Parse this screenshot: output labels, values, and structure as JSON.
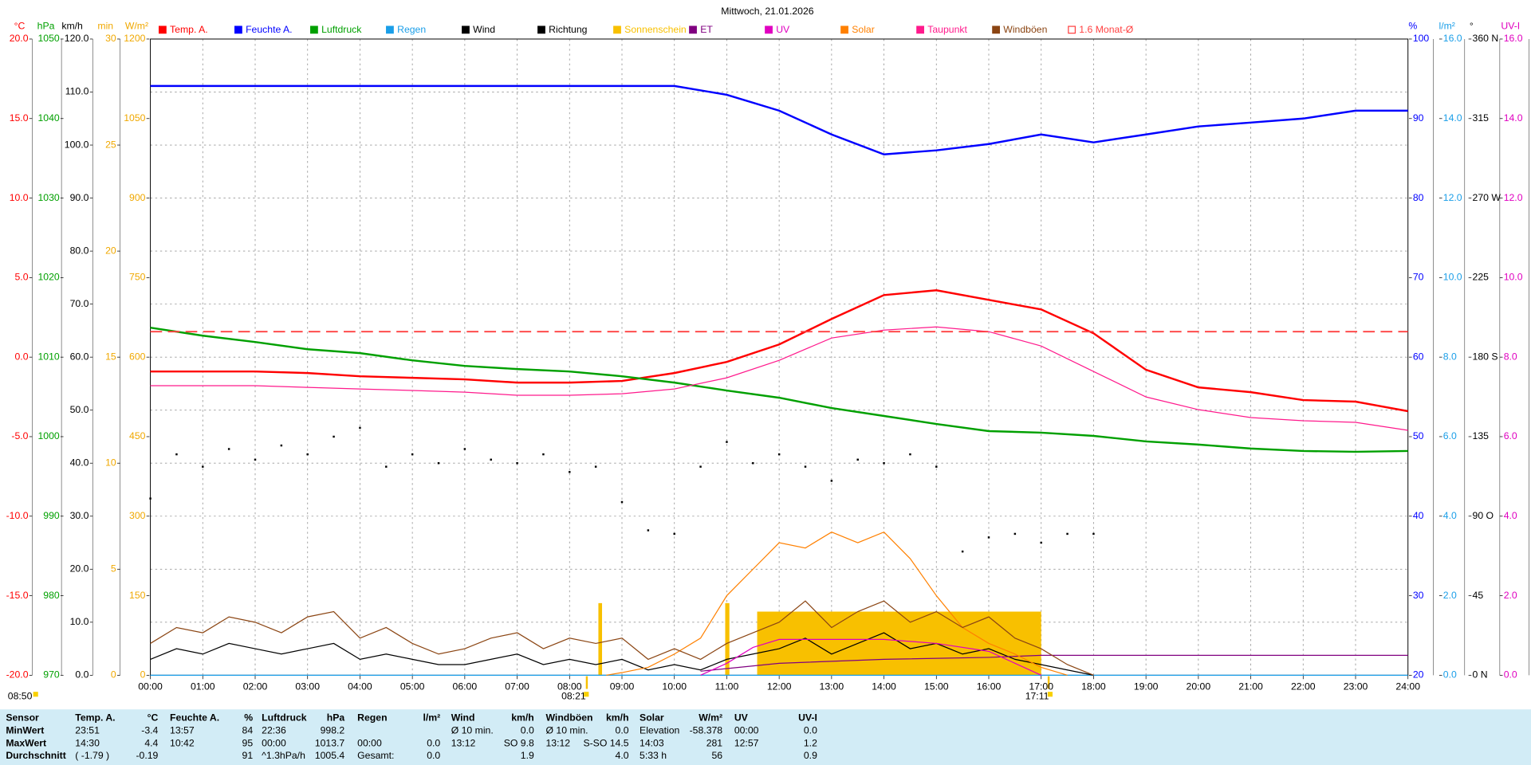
{
  "chart_data": {
    "type": "line",
    "title": "Mittwoch, 21.01.2026",
    "xlim": [
      0,
      24
    ],
    "xticks": [
      {
        "value": 0,
        "label": "00:00"
      },
      {
        "value": 1,
        "label": "01:00"
      },
      {
        "value": 2,
        "label": "02:00"
      },
      {
        "value": 3,
        "label": "03:00"
      },
      {
        "value": 4,
        "label": "04:00"
      },
      {
        "value": 5,
        "label": "05:00"
      },
      {
        "value": 6,
        "label": "06:00"
      },
      {
        "value": 7,
        "label": "07:00"
      },
      {
        "value": 8,
        "label": "08:00"
      },
      {
        "value": 9,
        "label": "09:00"
      },
      {
        "value": 10,
        "label": "10:00"
      },
      {
        "value": 11,
        "label": "11:00"
      },
      {
        "value": 12,
        "label": "12:00"
      },
      {
        "value": 13,
        "label": "13:00"
      },
      {
        "value": 14,
        "label": "14:00"
      },
      {
        "value": 15,
        "label": "15:00"
      },
      {
        "value": 16,
        "label": "16:00"
      },
      {
        "value": 17,
        "label": "17:00"
      },
      {
        "value": 18,
        "label": "18:00"
      },
      {
        "value": 19,
        "label": "19:00"
      },
      {
        "value": 20,
        "label": "20:00"
      },
      {
        "value": 21,
        "label": "21:00"
      },
      {
        "value": 22,
        "label": "22:00"
      },
      {
        "value": 23,
        "label": "23:00"
      },
      {
        "value": 24,
        "label": "24:00"
      }
    ],
    "grid": true,
    "axes": [
      {
        "id": "temp",
        "label": "°C",
        "color": "#ff0000",
        "ylim": [
          -20,
          20
        ],
        "yticks": [
          {
            "value": 20,
            "label": "20.0"
          },
          {
            "value": 15,
            "label": "15.0"
          },
          {
            "value": 10,
            "label": "10.0"
          },
          {
            "value": 5,
            "label": "5.0"
          },
          {
            "value": 0,
            "label": "0.0"
          },
          {
            "value": -5,
            "label": "-5.0"
          },
          {
            "value": -10,
            "label": "-10.0"
          },
          {
            "value": -15,
            "label": "-15.0"
          },
          {
            "value": -20,
            "label": "-20.0"
          }
        ]
      },
      {
        "id": "hpa",
        "label": "hPa",
        "color": "#00a000",
        "ylim": [
          970,
          1050
        ],
        "yticks": [
          1050,
          1040,
          1030,
          1020,
          1010,
          1000,
          990,
          980,
          970
        ]
      },
      {
        "id": "kmh",
        "label": "km/h",
        "color": "#000000",
        "ylim": [
          0,
          120
        ],
        "grid": true,
        "yticks": [
          {
            "value": 120,
            "label": "120.0"
          },
          {
            "value": 110,
            "label": "110.0"
          },
          {
            "value": 100,
            "label": "100.0"
          },
          {
            "value": 90,
            "label": "90.0"
          },
          {
            "value": 80,
            "label": "80.0"
          },
          {
            "value": 70,
            "label": "70.0"
          },
          {
            "value": 60,
            "label": "60.0"
          },
          {
            "value": 50,
            "label": "50.0"
          },
          {
            "value": 40,
            "label": "40.0"
          },
          {
            "value": 30,
            "label": "30.0"
          },
          {
            "value": 20,
            "label": "20.0"
          },
          {
            "value": 10,
            "label": "10.0"
          },
          {
            "value": 0,
            "label": "0.0"
          }
        ]
      },
      {
        "id": "min",
        "label": "min",
        "color": "#f0a800",
        "ylim": [
          0,
          30
        ],
        "yticks": [
          30,
          25,
          20,
          15,
          10,
          5,
          0
        ]
      },
      {
        "id": "wm2",
        "label": "W/m²",
        "color": "#f0a800",
        "ylim": [
          0,
          1200
        ],
        "yticks": [
          1200,
          1050,
          900,
          750,
          600,
          450,
          300,
          150,
          0
        ]
      },
      {
        "id": "pct",
        "label": "%",
        "color": "#0000ff",
        "ylim": [
          20,
          100
        ],
        "yticks": [
          100,
          90,
          80,
          70,
          60,
          50,
          40,
          30,
          20
        ]
      },
      {
        "id": "lm2",
        "label": "l/m²",
        "color": "#1a9ee8",
        "ylim": [
          0,
          16
        ],
        "yticks": [
          {
            "value": 16,
            "label": "16.0"
          },
          {
            "value": 14,
            "label": "14.0"
          },
          {
            "value": 12,
            "label": "12.0"
          },
          {
            "value": 10,
            "label": "10.0"
          },
          {
            "value": 8,
            "label": "8.0"
          },
          {
            "value": 6,
            "label": "6.0"
          },
          {
            "value": 4,
            "label": "4.0"
          },
          {
            "value": 2,
            "label": "2.0"
          },
          {
            "value": 0,
            "label": "0.0"
          }
        ]
      },
      {
        "id": "deg",
        "label": "°",
        "color": "#000000",
        "ylim": [
          0,
          360
        ],
        "yticks": [
          {
            "value": 360,
            "label": "360 N"
          },
          315,
          {
            "value": 270,
            "label": "270 W"
          },
          225,
          {
            "value": 180,
            "label": "180 S"
          },
          135,
          {
            "value": 90,
            "label": "90 O"
          },
          45,
          {
            "value": 0,
            "label": "0 N"
          }
        ]
      },
      {
        "id": "uv",
        "label": "UV-I",
        "color": "#e000c0",
        "ylim": [
          0,
          16
        ],
        "yticks": [
          {
            "value": 16,
            "label": "16.0"
          },
          {
            "value": 14,
            "label": "14.0"
          },
          {
            "value": 12,
            "label": "12.0"
          },
          {
            "value": 10,
            "label": "10.0"
          },
          {
            "value": 8,
            "label": "8.0"
          },
          {
            "value": 6,
            "label": "6.0"
          },
          {
            "value": 4,
            "label": "4.0"
          },
          {
            "value": 2,
            "label": "2.0"
          },
          {
            "value": 0,
            "label": "0.0"
          }
        ]
      }
    ],
    "series": [
      {
        "name": "Temp. A.",
        "color": "#ff0000",
        "axis": "temp",
        "style": "line",
        "x": [
          0,
          1,
          2,
          3,
          4,
          5,
          6,
          7,
          8,
          9,
          10,
          11,
          12,
          13,
          14,
          15,
          16,
          17,
          18,
          19,
          20,
          21,
          22,
          23,
          24
        ],
        "values": [
          -0.9,
          -0.9,
          -0.9,
          -1.0,
          -1.2,
          -1.3,
          -1.4,
          -1.6,
          -1.6,
          -1.5,
          -1.0,
          -0.3,
          0.8,
          2.4,
          3.9,
          4.2,
          3.6,
          3.0,
          1.5,
          -0.8,
          -1.9,
          -2.2,
          -2.7,
          -2.8,
          -3.4
        ]
      },
      {
        "name": "Feuchte A.",
        "color": "#0000ff",
        "axis": "pct",
        "style": "line",
        "x": [
          0,
          1,
          2,
          3,
          4,
          5,
          6,
          7,
          8,
          9,
          10,
          11,
          12,
          13,
          14,
          15,
          16,
          17,
          18,
          19,
          20,
          21,
          22,
          23,
          24
        ],
        "values": [
          94.1,
          94.1,
          94.1,
          94.1,
          94.1,
          94.1,
          94.1,
          94.1,
          94.1,
          94.1,
          94.1,
          93,
          91,
          88,
          85.5,
          86,
          86.8,
          88,
          87,
          88,
          89,
          89.5,
          90,
          91,
          91
        ]
      },
      {
        "name": "Luftdruck",
        "color": "#00a000",
        "axis": "hpa",
        "style": "line",
        "x": [
          0,
          1,
          2,
          3,
          4,
          5,
          6,
          7,
          8,
          9,
          10,
          11,
          12,
          13,
          14,
          15,
          16,
          17,
          18,
          19,
          20,
          21,
          22,
          23,
          24
        ],
        "values": [
          1013.7,
          1012.7,
          1011.9,
          1011,
          1010.5,
          1009.6,
          1008.9,
          1008.5,
          1008.2,
          1007.6,
          1006.8,
          1005.8,
          1004.9,
          1003.6,
          1002.6,
          1001.6,
          1000.7,
          1000.5,
          1000.1,
          999.4,
          999,
          998.5,
          998.2,
          998.1,
          998.2
        ]
      },
      {
        "name": "Regen",
        "color": "#1a9ee8",
        "axis": "lm2",
        "style": "line",
        "x": [
          0,
          24
        ],
        "values": [
          0,
          0
        ]
      },
      {
        "name": "Wind",
        "color": "#000000",
        "axis": "kmh",
        "style": "line",
        "x": [
          0,
          0.5,
          1,
          1.5,
          2,
          2.5,
          3,
          3.5,
          4,
          4.5,
          5,
          5.5,
          6,
          6.5,
          7,
          7.5,
          8,
          8.5,
          9,
          9.5,
          10,
          10.5,
          11,
          11.5,
          12,
          12.5,
          13,
          13.5,
          14,
          14.5,
          15,
          15.5,
          16,
          16.5,
          17,
          17.5,
          18
        ],
        "values": [
          3,
          5,
          4,
          6,
          5,
          4,
          5,
          6,
          3,
          4,
          3,
          2,
          2,
          3,
          4,
          2,
          3,
          2,
          3,
          1,
          2,
          1,
          3,
          4,
          5,
          7,
          4,
          6,
          8,
          5,
          6,
          4,
          5,
          3,
          2,
          1,
          0
        ]
      },
      {
        "name": "Richtung",
        "color": "#000000",
        "axis": "deg",
        "style": "dots",
        "x": [
          0,
          0.5,
          1,
          1.5,
          2,
          2.5,
          3,
          3.5,
          4,
          4.5,
          5,
          5.5,
          6,
          6.5,
          7,
          7.5,
          8,
          8.5,
          9,
          9.5,
          10,
          10.5,
          11,
          11.5,
          12,
          12.5,
          13,
          13.5,
          14,
          14.5,
          15,
          15.5,
          16,
          16.5,
          17,
          17.5,
          18
        ],
        "values": [
          100,
          125,
          118,
          128,
          122,
          130,
          125,
          135,
          140,
          118,
          125,
          120,
          128,
          122,
          120,
          125,
          115,
          118,
          98,
          82,
          80,
          118,
          132,
          120,
          125,
          118,
          110,
          122,
          120,
          125,
          118,
          70,
          78,
          80,
          75,
          80,
          80
        ]
      },
      {
        "name": "Sonnenschein",
        "color": "#f8c000",
        "axis": "min",
        "style": "bars",
        "x": [
          8.55,
          10.97,
          11.58
        ],
        "x_end": [
          8.62,
          11.05,
          17.0
        ],
        "values": [
          3.4,
          3.4,
          3.0
        ]
      },
      {
        "name": "ET",
        "color": "#800080",
        "axis": "lm2",
        "style": "line",
        "x": [
          10.5,
          12,
          14,
          16,
          17,
          24
        ],
        "values": [
          0.1,
          0.3,
          0.4,
          0.45,
          0.5,
          0.5
        ]
      },
      {
        "name": "UV",
        "color": "#e000c0",
        "axis": "uv",
        "style": "line",
        "x": [
          10.5,
          11,
          11.5,
          12,
          13,
          14,
          15,
          16,
          17
        ],
        "values": [
          0,
          0.3,
          0.7,
          0.9,
          0.9,
          0.9,
          0.8,
          0.6,
          0
        ]
      },
      {
        "name": "Solar",
        "color": "#ff8000",
        "axis": "wm2",
        "style": "line",
        "x": [
          8.7,
          9,
          9.5,
          10,
          10.5,
          11,
          11.5,
          12,
          12.5,
          13,
          13.5,
          14,
          14.5,
          15,
          15.5,
          16,
          16.5,
          17,
          17.5
        ],
        "values": [
          0,
          5,
          15,
          40,
          70,
          150,
          200,
          250,
          240,
          270,
          250,
          270,
          220,
          150,
          90,
          60,
          40,
          15,
          0
        ]
      },
      {
        "name": "Taupunkt",
        "color": "#ff1a8c",
        "axis": "temp",
        "style": "line",
        "x": [
          0,
          1,
          2,
          3,
          4,
          5,
          6,
          7,
          8,
          9,
          10,
          11,
          12,
          13,
          14,
          15,
          16,
          17,
          18,
          19,
          20,
          21,
          22,
          23,
          24
        ],
        "values": [
          -1.8,
          -1.8,
          -1.8,
          -1.9,
          -2.0,
          -2.1,
          -2.2,
          -2.4,
          -2.4,
          -2.3,
          -2.0,
          -1.3,
          -0.2,
          1.2,
          1.7,
          1.9,
          1.6,
          0.7,
          -0.9,
          -2.5,
          -3.3,
          -3.8,
          -4.0,
          -4.1,
          -4.6
        ]
      },
      {
        "name": "Windböen",
        "color": "#8b4513",
        "axis": "kmh",
        "style": "line",
        "x": [
          0,
          0.5,
          1,
          1.5,
          2,
          2.5,
          3,
          3.5,
          4,
          4.5,
          5,
          5.5,
          6,
          6.5,
          7,
          7.5,
          8,
          8.5,
          9,
          9.5,
          10,
          10.5,
          11,
          11.5,
          12,
          12.5,
          13,
          13.5,
          14,
          14.5,
          15,
          15.5,
          16,
          16.5,
          17,
          17.5,
          18
        ],
        "values": [
          6,
          9,
          8,
          11,
          10,
          8,
          11,
          12,
          7,
          9,
          6,
          4,
          5,
          7,
          8,
          5,
          7,
          6,
          7,
          3,
          5,
          3,
          6,
          8,
          10,
          14,
          9,
          12,
          14,
          10,
          12,
          9,
          11,
          7,
          5,
          2,
          0
        ]
      },
      {
        "name": "1.6 Monat-Ø",
        "color": "#ff4040",
        "axis": "temp",
        "style": "dashed",
        "x": [
          0,
          24
        ],
        "values": [
          1.6,
          1.6
        ]
      }
    ],
    "annotations": [
      "08:50",
      "08:21",
      "17:11"
    ],
    "table": {
      "header": [
        "Sensor",
        "Temp. A.",
        "°C",
        "Feuchte A.",
        "%",
        "Luftdruck",
        "hPa",
        "Regen",
        "l/m²",
        "Wind",
        "km/h",
        "Windböen",
        "km/h",
        "Solar",
        "W/m²",
        "UV",
        "UV-I"
      ],
      "rows": [
        [
          "MinWert",
          "23:51",
          "-3.4",
          "13:57",
          "84",
          "22:36",
          "998.2",
          null,
          null,
          "Ø 10 min.",
          "0.0",
          "Ø 10 min.",
          "0.0",
          "Elevation",
          "-58.378",
          "00:00",
          "0.0"
        ],
        [
          "MaxWert",
          "14:30",
          "4.4",
          "10:42",
          "95",
          "00:00",
          "1013.7",
          "00:00",
          "0.0",
          "13:12",
          "SO 9.8",
          "13:12",
          "S-SO 14.5",
          "14:03",
          "281",
          "12:57",
          "1.2"
        ],
        [
          "Durchschnitt",
          "( -1.79 )",
          "-0.19",
          null,
          "91",
          "^1.3hPa/h",
          "1005.4",
          "Gesamt:",
          "0.0",
          null,
          "1.9",
          null,
          "4.0",
          "5:33 h",
          "56",
          null,
          "0.9"
        ]
      ]
    }
  }
}
